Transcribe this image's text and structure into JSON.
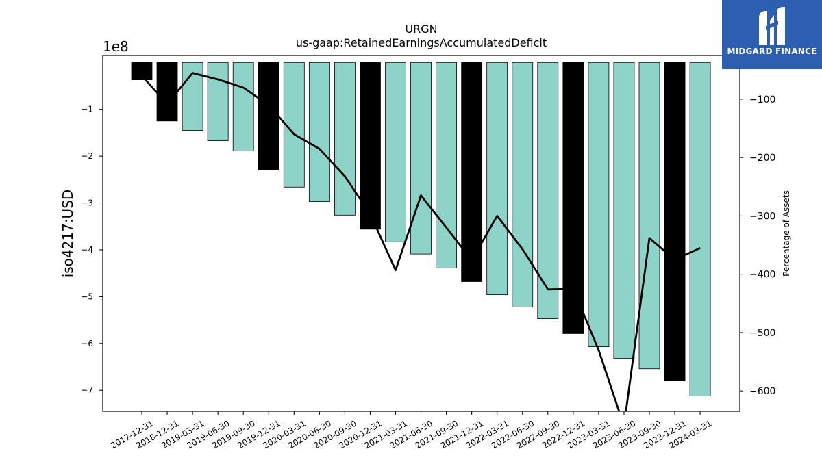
{
  "chart_data": {
    "type": "bar",
    "title": "URGN",
    "subtitle": "us-gaap:RetainedEarningsAccumulatedDeficit",
    "ylabel": "iso4217:USD",
    "y_offset_label": "1e8",
    "y2label": "Percentage of Assets",
    "ylim": [
      -7.45,
      0.15
    ],
    "y2lim": [
      -635,
      -25
    ],
    "yticks": [
      -7,
      -6,
      -5,
      -4,
      -3,
      -2,
      -1
    ],
    "y2ticks": [
      -600,
      -500,
      -400,
      -300,
      -200,
      -100
    ],
    "categories": [
      "2017-12-31",
      "2018-12-31",
      "2019-03-31",
      "2019-06-30",
      "2019-09-30",
      "2019-12-31",
      "2020-03-31",
      "2020-06-30",
      "2020-09-30",
      "2020-12-31",
      "2021-03-31",
      "2021-06-30",
      "2021-09-30",
      "2021-12-31",
      "2022-03-31",
      "2022-06-30",
      "2022-09-30",
      "2022-12-31",
      "2023-03-31",
      "2023-06-30",
      "2023-09-30",
      "2023-12-31",
      "2024-03-31"
    ],
    "series": [
      {
        "values": [
          -0.37,
          -1.25,
          -1.45,
          -1.67,
          -1.89,
          -2.29,
          -2.66,
          -2.97,
          -3.26,
          -3.56,
          -3.83,
          -4.09,
          -4.39,
          -4.68,
          -4.96,
          -5.22,
          -5.47,
          -5.79,
          -6.07,
          -6.32,
          -6.54,
          -6.8,
          -7.12
        ],
        "annual": [
          true,
          true,
          false,
          false,
          false,
          true,
          false,
          false,
          false,
          true,
          false,
          false,
          false,
          true,
          false,
          false,
          false,
          true,
          false,
          false,
          false,
          true,
          false
        ]
      },
      {
        "axis": "right",
        "values": [
          -60,
          -108,
          -55,
          -66,
          -80,
          -110,
          -160,
          -185,
          -232,
          -297,
          -393,
          -265,
          -320,
          -376,
          -300,
          -357,
          -426,
          -425,
          -530,
          -660,
          -338,
          -375,
          -355
        ]
      }
    ],
    "colors": {
      "quarterly": "#8dd3c7",
      "annual": "#000000",
      "line": "#000000"
    },
    "brand": {
      "name": "MIDGARD FINANCE",
      "color": "#2d5fb0"
    }
  }
}
